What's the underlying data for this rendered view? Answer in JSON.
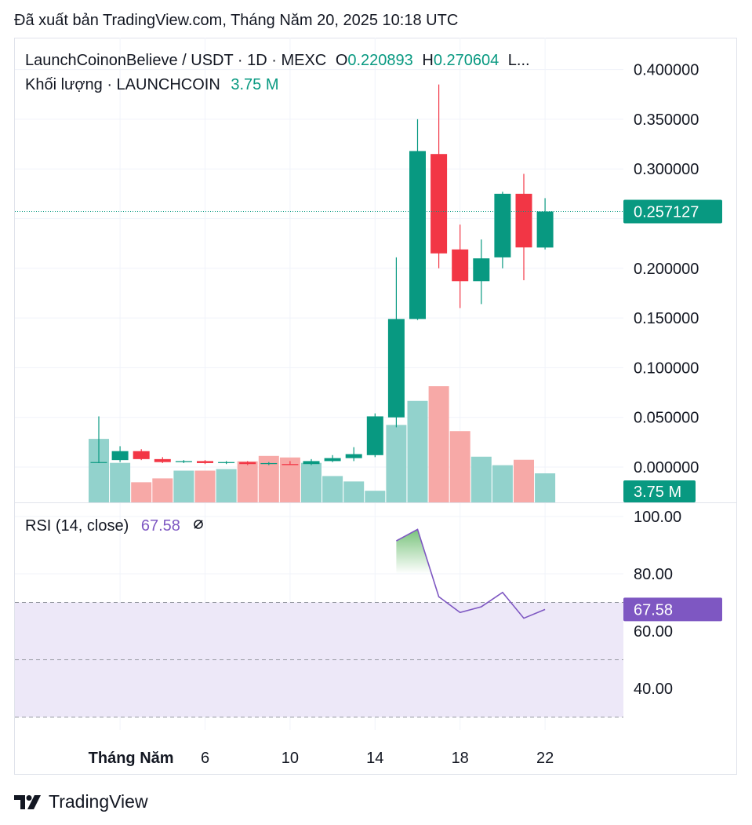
{
  "header": {
    "published": "Đã xuất bản TradingView.com, Tháng Năm 20, 2025 10:18 UTC"
  },
  "legend": {
    "symbol": "LaunchCoinonBelieve / USDT · 1D · MEXC",
    "open_label": "O",
    "open_value": "0.220893",
    "high_label": "H",
    "high_value": "0.270604",
    "more": "L...",
    "volume_label": "Khối lượng · LAUNCHCOIN",
    "volume_value": "3.75 M",
    "rsi_label": "RSI (14, close)",
    "rsi_value": "67.58",
    "rsi_settings_icon": "eye-slash-icon"
  },
  "badges": {
    "last_price": "0.257127",
    "volume": "3.75 M",
    "rsi": "67.58"
  },
  "colors": {
    "up": "#089981",
    "down": "#f23645",
    "up_volume": "#92d2cc",
    "down_volume": "#f7a9a7",
    "rsi_line": "#7e57c2",
    "rsi_band": "#ede8f8",
    "grid": "#f0f3fa"
  },
  "footer": {
    "brand": "TradingView",
    "logo_icon": "tradingview-logo-icon"
  },
  "chart_data": [
    {
      "type": "candlestick",
      "ylim": [
        -0.035,
        0.41
      ],
      "y_ticks": [
        "0.400000",
        "0.350000",
        "0.300000",
        "0.200000",
        "0.150000",
        "0.100000",
        "0.050000",
        "0.000000"
      ],
      "x_ticks": [
        "Tháng Năm",
        "6",
        "10",
        "14",
        "18",
        "22"
      ],
      "x_tick_days": [
        2,
        6,
        10,
        14,
        18,
        22
      ],
      "last_price": 0.257127,
      "candles": [
        {
          "day": 1,
          "o": 0.005,
          "h": 0.051,
          "l": 0.004,
          "c": 0.005
        },
        {
          "day": 2,
          "o": 0.007,
          "h": 0.021,
          "l": 0.005,
          "c": 0.016
        },
        {
          "day": 3,
          "o": 0.016,
          "h": 0.018,
          "l": 0.007,
          "c": 0.008
        },
        {
          "day": 4,
          "o": 0.008,
          "h": 0.01,
          "l": 0.004,
          "c": 0.005
        },
        {
          "day": 5,
          "o": 0.005,
          "h": 0.007,
          "l": 0.004,
          "c": 0.006
        },
        {
          "day": 6,
          "o": 0.006,
          "h": 0.007,
          "l": 0.003,
          "c": 0.004
        },
        {
          "day": 7,
          "o": 0.004,
          "h": 0.006,
          "l": 0.003,
          "c": 0.005
        },
        {
          "day": 8,
          "o": 0.005,
          "h": 0.006,
          "l": 0.002,
          "c": 0.003
        },
        {
          "day": 9,
          "o": 0.003,
          "h": 0.005,
          "l": 0.002,
          "c": 0.004
        },
        {
          "day": 10,
          "o": 0.003,
          "h": 0.006,
          "l": 0.002,
          "c": 0.002
        },
        {
          "day": 11,
          "o": 0.003,
          "h": 0.008,
          "l": 0.002,
          "c": 0.006
        },
        {
          "day": 12,
          "o": 0.006,
          "h": 0.012,
          "l": 0.005,
          "c": 0.009
        },
        {
          "day": 13,
          "o": 0.009,
          "h": 0.02,
          "l": 0.006,
          "c": 0.013
        },
        {
          "day": 14,
          "o": 0.012,
          "h": 0.054,
          "l": 0.01,
          "c": 0.051
        },
        {
          "day": 15,
          "o": 0.05,
          "h": 0.211,
          "l": 0.04,
          "c": 0.149
        },
        {
          "day": 16,
          "o": 0.149,
          "h": 0.35,
          "l": 0.148,
          "c": 0.318
        },
        {
          "day": 17,
          "o": 0.315,
          "h": 0.385,
          "l": 0.2,
          "c": 0.215
        },
        {
          "day": 18,
          "o": 0.219,
          "h": 0.244,
          "l": 0.16,
          "c": 0.187
        },
        {
          "day": 19,
          "o": 0.187,
          "h": 0.229,
          "l": 0.164,
          "c": 0.21
        },
        {
          "day": 20,
          "o": 0.211,
          "h": 0.277,
          "l": 0.2,
          "c": 0.275
        },
        {
          "day": 21,
          "o": 0.275,
          "h": 0.295,
          "l": 0.188,
          "c": 0.221
        },
        {
          "day": 22,
          "o": 0.220893,
          "h": 0.270604,
          "l": 0.219,
          "c": 0.257127
        }
      ]
    },
    {
      "type": "bar",
      "name": "Khối lượng",
      "ylim": [
        0,
        15
      ],
      "bars": [
        {
          "day": 1,
          "value": 8.2,
          "dir": "up"
        },
        {
          "day": 2,
          "value": 5.1,
          "dir": "up"
        },
        {
          "day": 3,
          "value": 2.6,
          "dir": "down"
        },
        {
          "day": 4,
          "value": 3.1,
          "dir": "down"
        },
        {
          "day": 5,
          "value": 4.1,
          "dir": "up"
        },
        {
          "day": 6,
          "value": 4.1,
          "dir": "down"
        },
        {
          "day": 7,
          "value": 4.3,
          "dir": "up"
        },
        {
          "day": 8,
          "value": 5.3,
          "dir": "down"
        },
        {
          "day": 9,
          "value": 6.0,
          "dir": "down"
        },
        {
          "day": 10,
          "value": 5.8,
          "dir": "down"
        },
        {
          "day": 11,
          "value": 5.1,
          "dir": "up"
        },
        {
          "day": 12,
          "value": 3.4,
          "dir": "up"
        },
        {
          "day": 13,
          "value": 2.7,
          "dir": "up"
        },
        {
          "day": 14,
          "value": 1.5,
          "dir": "up"
        },
        {
          "day": 15,
          "value": 10.0,
          "dir": "up"
        },
        {
          "day": 16,
          "value": 13.1,
          "dir": "up"
        },
        {
          "day": 17,
          "value": 15.0,
          "dir": "down"
        },
        {
          "day": 18,
          "value": 9.2,
          "dir": "down"
        },
        {
          "day": 19,
          "value": 5.9,
          "dir": "up"
        },
        {
          "day": 20,
          "value": 4.8,
          "dir": "up"
        },
        {
          "day": 21,
          "value": 5.5,
          "dir": "down"
        },
        {
          "day": 22,
          "value": 3.75,
          "dir": "up"
        }
      ]
    },
    {
      "type": "line",
      "name": "RSI (14, close)",
      "ylim": [
        25,
        103
      ],
      "y_ticks": [
        "100.00",
        "80.00",
        "60.00",
        "40.00"
      ],
      "y_tick_values": [
        100,
        80,
        60,
        40
      ],
      "bands": {
        "upper": 70,
        "middle": 50,
        "lower": 30
      },
      "points": [
        {
          "day": 15,
          "value": 91.5
        },
        {
          "day": 16,
          "value": 95.5
        },
        {
          "day": 17,
          "value": 72.0
        },
        {
          "day": 18,
          "value": 66.5
        },
        {
          "day": 19,
          "value": 68.5
        },
        {
          "day": 20,
          "value": 73.5
        },
        {
          "day": 21,
          "value": 64.5
        },
        {
          "day": 22,
          "value": 67.58
        }
      ]
    }
  ]
}
